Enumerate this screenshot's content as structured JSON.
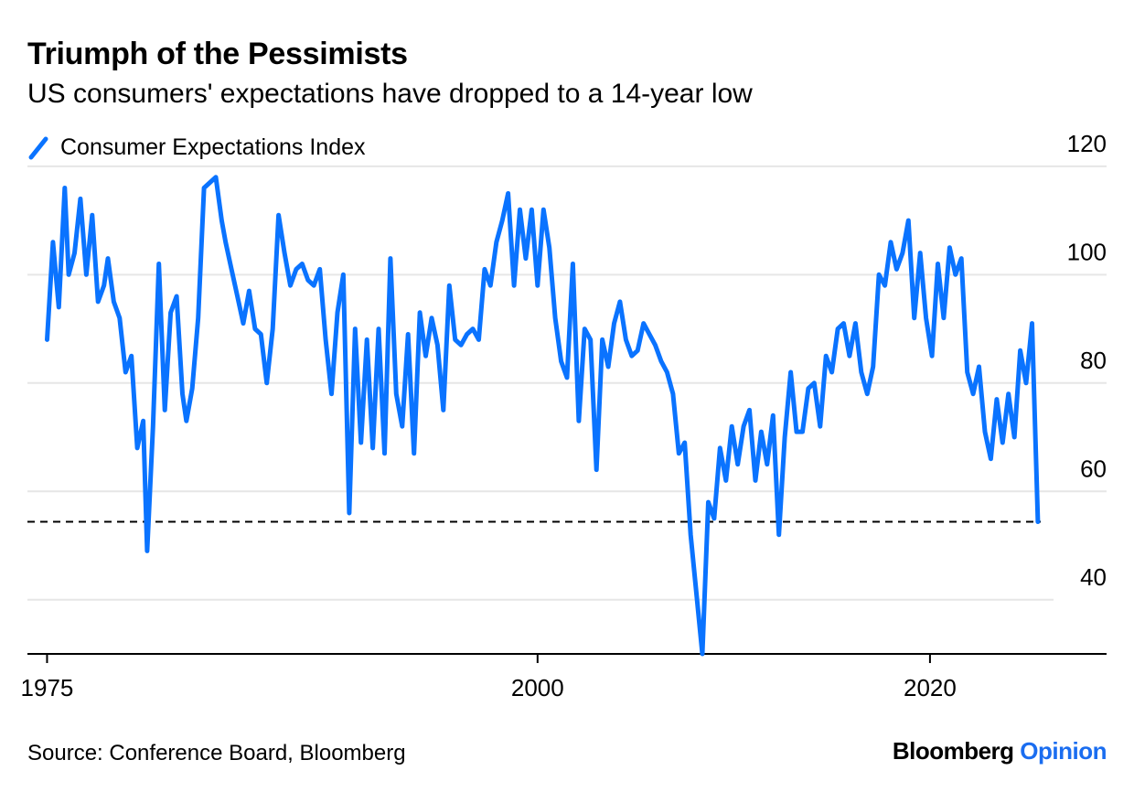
{
  "title": "Triumph of the Pessimists",
  "subtitle": "US consumers' expectations have dropped to a 14-year low",
  "source": "Source: Conference Board, Bloomberg",
  "brand": {
    "name": "Bloomberg",
    "suffix": "Opinion"
  },
  "colors": {
    "series": "#0a73ff",
    "grid": "#e6e6e6",
    "reference": "#000000",
    "brand_accent": "#1a6df0"
  },
  "chart_data": {
    "type": "line",
    "title": "Triumph of the Pessimists",
    "subtitle": "US consumers' expectations have dropped to a 14-year low",
    "xlabel": "",
    "ylabel": "",
    "xlim": [
      1974.0,
      2029.0
    ],
    "ylim": [
      30,
      122
    ],
    "y_ticks": [
      40,
      60,
      80,
      100,
      120
    ],
    "x_ticks": [
      1975,
      2000,
      2020
    ],
    "grid": true,
    "y_axis_side": "right",
    "legend": "top-left",
    "reference_lines": [
      {
        "y": 54.4,
        "style": "dashed"
      }
    ],
    "series": [
      {
        "name": "Consumer Expectations Index",
        "x": [
          1975.0,
          1975.3,
          1975.6,
          1975.9,
          1976.1,
          1976.4,
          1976.7,
          1977.0,
          1977.3,
          1977.6,
          1977.9,
          1978.1,
          1978.4,
          1978.7,
          1979.0,
          1979.3,
          1979.6,
          1979.9,
          1980.1,
          1980.4,
          1980.7,
          1981.0,
          1981.3,
          1981.6,
          1981.9,
          1982.1,
          1982.4,
          1982.7,
          1983.0,
          1983.3,
          1983.6,
          1983.9,
          1984.1,
          1984.4,
          1984.7,
          1985.0,
          1985.3,
          1985.6,
          1985.9,
          1986.2,
          1986.5,
          1986.8,
          1987.1,
          1987.4,
          1987.7,
          1988.0,
          1988.3,
          1988.6,
          1988.9,
          1989.2,
          1989.5,
          1989.8,
          1990.1,
          1990.4,
          1990.7,
          1991.0,
          1991.3,
          1991.6,
          1991.9,
          1992.2,
          1992.5,
          1992.8,
          1993.1,
          1993.4,
          1993.7,
          1994.0,
          1994.3,
          1994.6,
          1994.9,
          1995.2,
          1995.5,
          1995.8,
          1996.1,
          1996.4,
          1996.7,
          1997.0,
          1997.3,
          1997.6,
          1997.9,
          1998.2,
          1998.5,
          1998.8,
          1999.1,
          1999.4,
          1999.7,
          2000.0,
          2000.3,
          2000.6,
          2000.9,
          2001.2,
          2001.5,
          2001.8,
          2002.1,
          2002.4,
          2002.7,
          2003.0,
          2003.3,
          2003.6,
          2003.9,
          2004.2,
          2004.5,
          2004.8,
          2005.1,
          2005.4,
          2005.7,
          2006.0,
          2006.3,
          2006.6,
          2006.9,
          2007.2,
          2007.5,
          2007.8,
          2008.1,
          2008.4,
          2008.7,
          2009.0,
          2009.3,
          2009.6,
          2009.9,
          2010.2,
          2010.5,
          2010.8,
          2011.1,
          2011.4,
          2011.7,
          2012.0,
          2012.3,
          2012.6,
          2012.9,
          2013.2,
          2013.5,
          2013.8,
          2014.1,
          2014.4,
          2014.7,
          2015.0,
          2015.3,
          2015.6,
          2015.9,
          2016.2,
          2016.5,
          2016.8,
          2017.1,
          2017.4,
          2017.7,
          2018.0,
          2018.3,
          2018.6,
          2018.9,
          2019.2,
          2019.5,
          2019.8,
          2020.1,
          2020.4,
          2020.7,
          2021.0,
          2021.3,
          2021.6,
          2021.9,
          2022.2,
          2022.5,
          2022.8,
          2023.1,
          2023.4,
          2023.7,
          2024.0,
          2024.3,
          2024.6,
          2024.9,
          2025.2,
          2025.5
        ],
        "values": [
          88,
          106,
          94,
          116,
          100,
          104,
          114,
          100,
          111,
          95,
          98,
          103,
          95,
          92,
          82,
          85,
          68,
          73,
          49,
          72,
          102,
          75,
          93,
          96,
          78,
          73,
          79,
          92,
          116,
          117,
          118,
          110,
          106,
          101,
          96,
          91,
          97,
          90,
          89,
          80,
          90,
          111,
          104,
          98,
          101,
          102,
          99,
          98,
          101,
          88,
          78,
          93,
          100,
          56,
          90,
          69,
          88,
          68,
          90,
          67,
          103,
          78,
          72,
          89,
          67,
          93,
          85,
          92,
          87,
          75,
          98,
          88,
          87,
          89,
          90,
          88,
          101,
          98,
          106,
          110,
          115,
          98,
          112,
          103,
          112,
          98,
          112,
          105,
          92,
          84,
          81,
          102,
          73,
          90,
          88,
          64,
          88,
          83,
          91,
          95,
          88,
          85,
          86,
          91,
          89,
          87,
          84,
          82,
          78,
          67,
          69,
          52,
          41,
          30,
          58,
          55,
          68,
          62,
          72,
          65,
          72,
          75,
          62,
          71,
          65,
          74,
          52,
          70,
          82,
          71,
          71,
          79,
          80,
          72,
          85,
          82,
          90,
          91,
          85,
          91,
          82,
          78,
          83,
          100,
          98,
          106,
          101,
          104,
          110,
          92,
          104,
          92,
          85,
          102,
          92,
          105,
          100,
          103,
          82,
          78,
          83,
          71,
          66,
          77,
          69,
          78,
          70,
          86,
          80,
          91,
          54.4
        ],
        "values_note": "approximate monthly-sampled readings estimated from chart"
      }
    ]
  }
}
